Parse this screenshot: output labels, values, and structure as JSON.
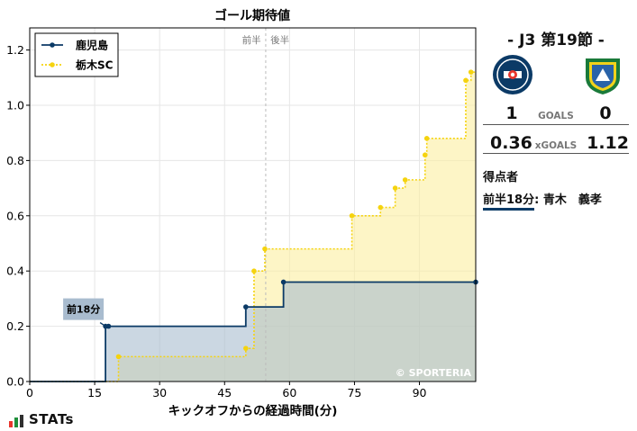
{
  "chart_data": {
    "type": "line",
    "step": true,
    "title": "ゴール期待値",
    "xlabel": "キックオフからの経過時間(分)",
    "ylabel": "",
    "xlim": [
      0,
      103
    ],
    "ylim": [
      0,
      1.28
    ],
    "xticks": [
      "0",
      "15",
      "30",
      "45",
      "60",
      "75",
      "90"
    ],
    "yticks": [
      "0.0",
      "0.2",
      "0.4",
      "0.6",
      "0.8",
      "1.0",
      "1.2"
    ],
    "grid": true,
    "legend_position": "top-left",
    "halftime_label": "前半　後半",
    "halftime_minute": 54.5,
    "watermark": "© SPORTERIA",
    "series": [
      {
        "name": "鹿児島",
        "color": "#0b3a66",
        "fill": "#a9bccf",
        "style": "solid",
        "x": [
          17.5,
          18.2,
          49.9,
          58.6,
          103
        ],
        "y": [
          0.2,
          0.2,
          0.27,
          0.36,
          0.36
        ]
      },
      {
        "name": "栃木SC",
        "color": "#f5d30f",
        "fill": "#fbeea0",
        "style": "dotted",
        "x": [
          20.5,
          49.9,
          51.8,
          54.3,
          74.4,
          81.0,
          84.4,
          86.7,
          91.3,
          91.7,
          100.7,
          101.9
        ],
        "y": [
          0.09,
          0.12,
          0.4,
          0.48,
          0.6,
          0.63,
          0.7,
          0.73,
          0.82,
          0.88,
          1.09,
          1.12
        ]
      }
    ],
    "annotations": [
      {
        "text": "前18分",
        "x": 17.5,
        "y": 0.2,
        "series": "鹿児島"
      }
    ]
  },
  "panel": {
    "match_title": "- J3 第19節 -",
    "home_goals": "1",
    "away_goals": "0",
    "goals_label": "GOALS",
    "home_xg": "0.36",
    "away_xg": "1.12",
    "xg_label": "xGOALS",
    "scorers_title": "得点者",
    "scorer_time": "前半18分",
    "scorer_name": ": 青木　義孝"
  },
  "brand": {
    "text": "STATs",
    "colors": [
      "#e8362d",
      "#1f8f3a",
      "#2f2f2f"
    ]
  }
}
